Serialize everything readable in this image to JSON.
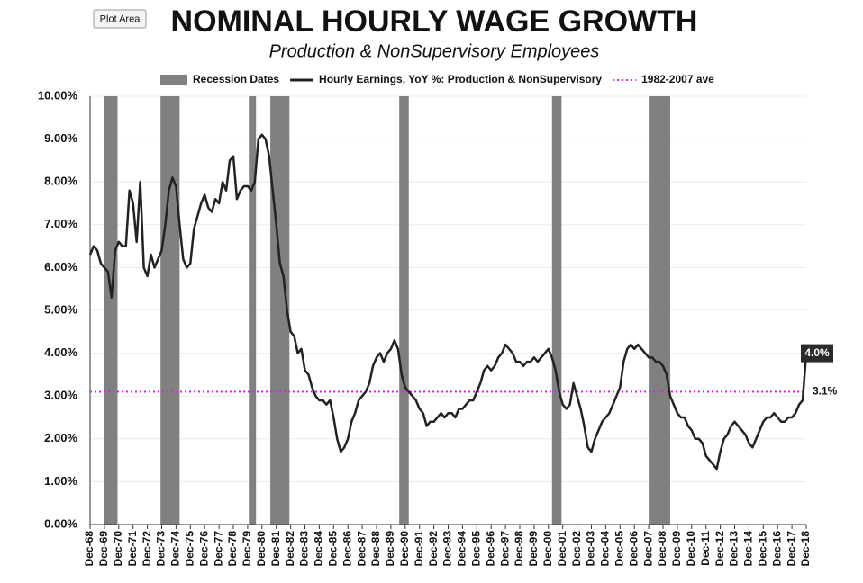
{
  "tooltip": "Plot Area",
  "chart_data": {
    "type": "line",
    "title": "NOMINAL HOURLY WAGE GROWTH",
    "subtitle": "Production & NonSupervisory Employees",
    "recessions": {
      "name": "Recession Dates",
      "color": "#808080",
      "periods": [
        {
          "start": "Dec-69",
          "end": "Nov-70"
        },
        {
          "start": "Nov-73",
          "end": "Mar-75"
        },
        {
          "start": "Jan-80",
          "end": "Jul-80"
        },
        {
          "start": "Jul-81",
          "end": "Nov-82"
        },
        {
          "start": "Jul-90",
          "end": "Mar-91"
        },
        {
          "start": "Mar-01",
          "end": "Nov-01"
        },
        {
          "start": "Dec-07",
          "end": "Jun-09"
        }
      ]
    },
    "x": [
      "Dec-68",
      "Mar-69",
      "Jun-69",
      "Sep-69",
      "Dec-69",
      "Mar-70",
      "Jun-70",
      "Sep-70",
      "Dec-70",
      "Mar-71",
      "Jun-71",
      "Sep-71",
      "Dec-71",
      "Mar-72",
      "Jun-72",
      "Sep-72",
      "Dec-72",
      "Mar-73",
      "Jun-73",
      "Sep-73",
      "Dec-73",
      "Mar-74",
      "Jun-74",
      "Sep-74",
      "Dec-74",
      "Mar-75",
      "Jun-75",
      "Sep-75",
      "Dec-75",
      "Mar-76",
      "Jun-76",
      "Sep-76",
      "Dec-76",
      "Mar-77",
      "Jun-77",
      "Sep-77",
      "Dec-77",
      "Mar-78",
      "Jun-78",
      "Sep-78",
      "Dec-78",
      "Mar-79",
      "Jun-79",
      "Sep-79",
      "Dec-79",
      "Mar-80",
      "Jun-80",
      "Sep-80",
      "Dec-80",
      "Mar-81",
      "Jun-81",
      "Sep-81",
      "Dec-81",
      "Mar-82",
      "Jun-82",
      "Sep-82",
      "Dec-82",
      "Mar-83",
      "Jun-83",
      "Sep-83",
      "Dec-83",
      "Mar-84",
      "Jun-84",
      "Sep-84",
      "Dec-84",
      "Mar-85",
      "Jun-85",
      "Sep-85",
      "Dec-85",
      "Mar-86",
      "Jun-86",
      "Sep-86",
      "Dec-86",
      "Mar-87",
      "Jun-87",
      "Sep-87",
      "Dec-87",
      "Mar-88",
      "Jun-88",
      "Sep-88",
      "Dec-88",
      "Mar-89",
      "Jun-89",
      "Sep-89",
      "Dec-89",
      "Mar-90",
      "Jun-90",
      "Sep-90",
      "Dec-90",
      "Mar-91",
      "Jun-91",
      "Sep-91",
      "Dec-91",
      "Mar-92",
      "Jun-92",
      "Sep-92",
      "Dec-92",
      "Mar-93",
      "Jun-93",
      "Sep-93",
      "Dec-93",
      "Mar-94",
      "Jun-94",
      "Sep-94",
      "Dec-94",
      "Mar-95",
      "Jun-95",
      "Sep-95",
      "Dec-95",
      "Mar-96",
      "Jun-96",
      "Sep-96",
      "Dec-96",
      "Mar-97",
      "Jun-97",
      "Sep-97",
      "Dec-97",
      "Mar-98",
      "Jun-98",
      "Sep-98",
      "Dec-98",
      "Mar-99",
      "Jun-99",
      "Sep-99",
      "Dec-99",
      "Mar-00",
      "Jun-00",
      "Sep-00",
      "Dec-00",
      "Mar-01",
      "Jun-01",
      "Sep-01",
      "Dec-01",
      "Mar-02",
      "Jun-02",
      "Sep-02",
      "Dec-02",
      "Mar-03",
      "Jun-03",
      "Sep-03",
      "Dec-03",
      "Mar-04",
      "Jun-04",
      "Sep-04",
      "Dec-04",
      "Mar-05",
      "Jun-05",
      "Sep-05",
      "Dec-05",
      "Mar-06",
      "Jun-06",
      "Sep-06",
      "Dec-06",
      "Mar-07",
      "Jun-07",
      "Sep-07",
      "Dec-07",
      "Mar-08",
      "Jun-08",
      "Sep-08",
      "Dec-08",
      "Mar-09",
      "Jun-09",
      "Sep-09",
      "Dec-09",
      "Mar-10",
      "Jun-10",
      "Sep-10",
      "Dec-10",
      "Mar-11",
      "Jun-11",
      "Sep-11",
      "Dec-11",
      "Mar-12",
      "Jun-12",
      "Sep-12",
      "Dec-12",
      "Mar-13",
      "Jun-13",
      "Sep-13",
      "Dec-13",
      "Mar-14",
      "Jun-14",
      "Sep-14",
      "Dec-14",
      "Mar-15",
      "Jun-15",
      "Sep-15",
      "Dec-15",
      "Mar-16",
      "Jun-16",
      "Sep-16",
      "Dec-16",
      "Mar-17",
      "Jun-17",
      "Sep-17",
      "Dec-17",
      "Mar-18",
      "Jun-18",
      "Sep-18",
      "Dec-18"
    ],
    "series": [
      {
        "name": "Hourly Earnings, YoY %: Production & NonSupervisory",
        "color": "#222222",
        "values": [
          6.3,
          6.5,
          6.4,
          6.1,
          6.0,
          5.9,
          5.3,
          6.4,
          6.6,
          6.5,
          6.5,
          7.8,
          7.5,
          6.6,
          8.0,
          6.0,
          5.8,
          6.3,
          6.0,
          6.2,
          6.4,
          7.0,
          7.8,
          8.1,
          7.9,
          7.0,
          6.2,
          6.0,
          6.1,
          6.9,
          7.2,
          7.5,
          7.7,
          7.4,
          7.3,
          7.6,
          7.5,
          8.0,
          7.8,
          8.5,
          8.6,
          7.6,
          7.8,
          7.9,
          7.9,
          7.8,
          8.0,
          9.0,
          9.1,
          9.0,
          8.6,
          7.8,
          7.0,
          6.1,
          5.8,
          5.0,
          4.5,
          4.4,
          4.0,
          4.1,
          3.6,
          3.5,
          3.2,
          3.0,
          2.9,
          2.9,
          2.8,
          2.9,
          2.5,
          2.0,
          1.7,
          1.8,
          2.0,
          2.4,
          2.6,
          2.9,
          3.0,
          3.1,
          3.3,
          3.7,
          3.9,
          4.0,
          3.8,
          4.0,
          4.1,
          4.3,
          4.1,
          3.5,
          3.2,
          3.1,
          3.0,
          2.9,
          2.7,
          2.6,
          2.3,
          2.4,
          2.4,
          2.5,
          2.6,
          2.5,
          2.6,
          2.6,
          2.5,
          2.7,
          2.7,
          2.8,
          2.9,
          2.9,
          3.1,
          3.3,
          3.6,
          3.7,
          3.6,
          3.7,
          3.9,
          4.0,
          4.2,
          4.1,
          4.0,
          3.8,
          3.8,
          3.7,
          3.8,
          3.8,
          3.9,
          3.8,
          3.9,
          4.0,
          4.1,
          3.9,
          3.6,
          3.1,
          2.8,
          2.7,
          2.8,
          3.3,
          3.0,
          2.7,
          2.3,
          1.8,
          1.7,
          2.0,
          2.2,
          2.4,
          2.5,
          2.6,
          2.8,
          3.0,
          3.2,
          3.8,
          4.1,
          4.2,
          4.1,
          4.2,
          4.1,
          4.0,
          3.9,
          3.9,
          3.8,
          3.8,
          3.7,
          3.5,
          3.0,
          2.8,
          2.6,
          2.5,
          2.5,
          2.3,
          2.2,
          2.0,
          2.0,
          1.9,
          1.6,
          1.5,
          1.4,
          1.3,
          1.7,
          2.0,
          2.1,
          2.3,
          2.4,
          2.3,
          2.2,
          2.1,
          1.9,
          1.8,
          2.0,
          2.2,
          2.4,
          2.5,
          2.5,
          2.6,
          2.5,
          2.4,
          2.4,
          2.5,
          2.5,
          2.6,
          2.8,
          2.9,
          4.0
        ],
        "value_labels": [
          null,
          null,
          null,
          null,
          null,
          null,
          null,
          null,
          null,
          null,
          null,
          null,
          null,
          null,
          null,
          null,
          null,
          null,
          null,
          null,
          null,
          null,
          null,
          null,
          null,
          null,
          null,
          null,
          null,
          null,
          null,
          null,
          null,
          null,
          null,
          null,
          null,
          null,
          null,
          null,
          null,
          null,
          null,
          null,
          null,
          null,
          null,
          null,
          null,
          null,
          null,
          null,
          null,
          null,
          null,
          null,
          null,
          null,
          null,
          null,
          null,
          null,
          null,
          null,
          null,
          null,
          null,
          null,
          null,
          null,
          null,
          null,
          null,
          null,
          null,
          null,
          null,
          null,
          null,
          null,
          null,
          null,
          null,
          null,
          null,
          null,
          null,
          null,
          null,
          null,
          null,
          null,
          null,
          null,
          null,
          null,
          null,
          null,
          null,
          null,
          null,
          null,
          null,
          null,
          null,
          null,
          null,
          null,
          null,
          null,
          null,
          null,
          null,
          null,
          null,
          null,
          null,
          null,
          null,
          null,
          null,
          null,
          null,
          null,
          null,
          null,
          null,
          null,
          null,
          null,
          null,
          null,
          null,
          null,
          null,
          null,
          null,
          null,
          null,
          null,
          null,
          null,
          null,
          null,
          null,
          null,
          null,
          null,
          null,
          null,
          null,
          null,
          null,
          null,
          null,
          null,
          null,
          null,
          null,
          null,
          null,
          null,
          null,
          null,
          null,
          null,
          null,
          null,
          null,
          null,
          null,
          null,
          null,
          null,
          null,
          null,
          null,
          null,
          null,
          null,
          null,
          null,
          null,
          null,
          null,
          null,
          null,
          null,
          null,
          null,
          null,
          null,
          null,
          null,
          null,
          null,
          null,
          null,
          null,
          null,
          "4.0%"
        ]
      },
      {
        "name": "1982-2007 ave",
        "color": "#e020e0",
        "value": 3.1,
        "value_label": "3.1%"
      }
    ],
    "xlim": [
      "Dec-68",
      "Dec-18"
    ],
    "xticks": [
      "Dec-68",
      "Dec-69",
      "Dec-70",
      "Dec-71",
      "Dec-72",
      "Dec-73",
      "Dec-74",
      "Dec-75",
      "Dec-76",
      "Dec-77",
      "Dec-78",
      "Dec-79",
      "Dec-80",
      "Dec-81",
      "Dec-82",
      "Dec-83",
      "Dec-84",
      "Dec-85",
      "Dec-86",
      "Dec-87",
      "Dec-88",
      "Dec-89",
      "Dec-90",
      "Dec-91",
      "Dec-92",
      "Dec-93",
      "Dec-94",
      "Dec-95",
      "Dec-96",
      "Dec-97",
      "Dec-98",
      "Dec-99",
      "Dec-00",
      "Dec-01",
      "Dec-02",
      "Dec-03",
      "Dec-04",
      "Dec-05",
      "Dec-06",
      "Dec-07",
      "Dec-08",
      "Dec-09",
      "Dec-10",
      "Dec-11",
      "Dec-12",
      "Dec-13",
      "Dec-14",
      "Dec-15",
      "Dec-16",
      "Dec-17",
      "Dec-18"
    ],
    "ylim": [
      0,
      10
    ],
    "yticks": [
      {
        "value": 0,
        "label": "0.00%"
      },
      {
        "value": 1,
        "label": "1.00%"
      },
      {
        "value": 2,
        "label": "2.00%"
      },
      {
        "value": 3,
        "label": "3.00%"
      },
      {
        "value": 4,
        "label": "4.00%"
      },
      {
        "value": 5,
        "label": "5.00%"
      },
      {
        "value": 6,
        "label": "6.00%"
      },
      {
        "value": 7,
        "label": "7.00%"
      },
      {
        "value": 8,
        "label": "8.00%"
      },
      {
        "value": 9,
        "label": "9.00%"
      },
      {
        "value": 10,
        "label": "10.00%"
      }
    ],
    "grid": true,
    "legend": "top"
  }
}
